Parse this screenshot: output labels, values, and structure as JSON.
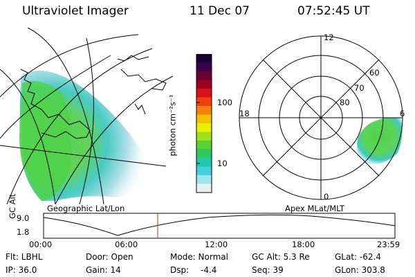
{
  "header": {
    "instrument": "Ultraviolet Imager",
    "date": "11 Dec 07",
    "time": "07:52:45 UT"
  },
  "left_panel": {
    "caption": "Geographic Lat/Lon",
    "aurora_color": "#4fd24a"
  },
  "colorbar": {
    "label": "photon cm⁻²s⁻¹",
    "tick_100": "100",
    "tick_10": "10",
    "colors": [
      "#1a0033",
      "#3a0050",
      "#6a0030",
      "#a00020",
      "#d81018",
      "#f04010",
      "#f88010",
      "#f8c000",
      "#e8f000",
      "#a0e020",
      "#58d030",
      "#30c860",
      "#20c8b0",
      "#40d0e0",
      "#a0e4ec",
      "#e8f0f4"
    ]
  },
  "right_panel": {
    "caption": "Apex MLat/MLT",
    "mlt_12": "12",
    "mlt_18": "18",
    "mlt_6": "6",
    "mlt_0": "0",
    "lat_60": "60",
    "lat_70": "70",
    "lat_80": "80"
  },
  "timeline": {
    "y_label": "GC Alt",
    "y_max": "9.0",
    "y_min": "1.8",
    "ticks": [
      "00:00",
      "06:00",
      "12:00",
      "18:00",
      "23:59"
    ],
    "marker_color": "#d02020"
  },
  "info": {
    "flt": "Flt: LBHL",
    "ip": "IP: 36.0",
    "door": "Door: Open",
    "gain": "Gain: 14",
    "mode": "Mode: Normal",
    "dsp_label": "Dsp:",
    "dsp_value": "-4.4",
    "gc_alt": "GC Alt: 5.3 Re",
    "seq": "Seq: 39",
    "glat": "GLat: -62.4",
    "glon": "GLon: 303.8"
  }
}
